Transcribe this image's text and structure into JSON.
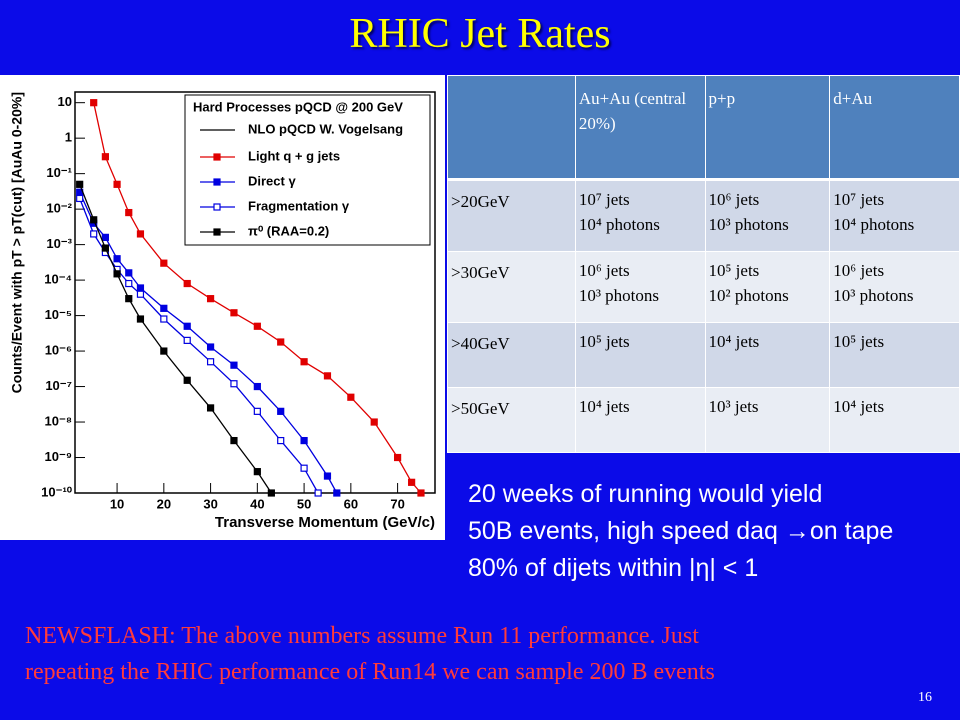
{
  "title": "RHIC Jet Rates",
  "plot": {
    "type": "line",
    "log_y": true,
    "xlabel": "Transverse Momentum (GeV/c)",
    "ylabel": "Counts/Event with pT > pT(cut) [AuAu 0-20%]",
    "legend_title": "Hard Processes pQCD @ 200 GeV",
    "legend_subtitle": "NLO pQCD W. Vogelsang",
    "xlim": [
      1,
      78
    ],
    "ylim": [
      1e-10,
      20
    ],
    "xticks": [
      10,
      20,
      30,
      40,
      50,
      60,
      70
    ],
    "yticks": [
      {
        "value": 10,
        "label": "10"
      },
      {
        "value": 1,
        "label": "1"
      },
      {
        "value": 0.1,
        "label": "10⁻¹"
      },
      {
        "value": 0.01,
        "label": "10⁻²"
      },
      {
        "value": 0.001,
        "label": "10⁻³"
      },
      {
        "value": 0.0001,
        "label": "10⁻⁴"
      },
      {
        "value": 1e-05,
        "label": "10⁻⁵"
      },
      {
        "value": 1e-06,
        "label": "10⁻⁶"
      },
      {
        "value": 1e-07,
        "label": "10⁻⁷"
      },
      {
        "value": 1e-08,
        "label": "10⁻⁸"
      },
      {
        "value": 1e-09,
        "label": "10⁻⁹"
      },
      {
        "value": 1e-10,
        "label": "10⁻¹⁰"
      }
    ],
    "series": [
      {
        "name": "Light q + g jets",
        "color": "#e00000",
        "marker": "square",
        "x": [
          5,
          7.5,
          10,
          12.5,
          15,
          20,
          25,
          30,
          35,
          40,
          45,
          50,
          55,
          60,
          65,
          70,
          73,
          75
        ],
        "values": [
          10,
          0.3,
          0.05,
          0.008,
          0.002,
          0.0003,
          8e-05,
          3e-05,
          1.2e-05,
          5e-06,
          1.8e-06,
          5e-07,
          2e-07,
          5e-08,
          1e-08,
          1e-09,
          2e-10,
          1e-10
        ]
      },
      {
        "name": "Direct γ",
        "color": "#0000e0",
        "marker": "square",
        "x": [
          2,
          5,
          7.5,
          10,
          12.5,
          15,
          20,
          25,
          30,
          35,
          40,
          45,
          50,
          55,
          57
        ],
        "values": [
          0.03,
          0.004,
          0.0016,
          0.0004,
          0.00016,
          6e-05,
          1.6e-05,
          5e-06,
          1.3e-06,
          4e-07,
          1e-07,
          2e-08,
          3e-09,
          3e-10,
          1e-10
        ]
      },
      {
        "name": "Fragmentation γ",
        "color": "#0000e0",
        "marker": "open-square",
        "x": [
          2,
          5,
          7.5,
          10,
          12.5,
          15,
          20,
          25,
          30,
          35,
          40,
          45,
          50,
          53
        ],
        "values": [
          0.02,
          0.002,
          0.0006,
          0.0002,
          8e-05,
          4e-05,
          8e-06,
          2e-06,
          5e-07,
          1.2e-07,
          2e-08,
          3e-09,
          5e-10,
          1e-10
        ]
      },
      {
        "name": "π⁰ (RAA=0.2)",
        "color": "#000000",
        "marker": "square",
        "x": [
          2,
          5,
          7.5,
          10,
          12.5,
          15,
          20,
          25,
          30,
          35,
          40,
          43
        ],
        "values": [
          0.05,
          0.005,
          0.0008,
          0.00015,
          3e-05,
          8e-06,
          1e-06,
          1.5e-07,
          2.5e-08,
          3e-09,
          4e-10,
          1e-10
        ]
      }
    ]
  },
  "table": {
    "header": [
      "",
      "Au+Au (central 20%)",
      "p+p",
      "d+Au"
    ],
    "rows": [
      [
        [
          ">20GeV"
        ],
        [
          "10⁷  jets",
          "10⁴ photons"
        ],
        [
          "10⁶ jets",
          "10³ photons"
        ],
        [
          "10⁷ jets",
          "10⁴ photons"
        ]
      ],
      [
        [
          ">30GeV"
        ],
        [
          "10⁶ jets",
          "10³ photons"
        ],
        [
          "10⁵ jets",
          "10² photons"
        ],
        [
          "10⁶ jets",
          "10³ photons"
        ]
      ],
      [
        [
          ">40GeV"
        ],
        [
          "10⁵ jets"
        ],
        [
          "10⁴ jets"
        ],
        [
          "10⁵ jets"
        ]
      ],
      [
        [
          ">50GeV"
        ],
        [
          "10⁴ jets"
        ],
        [
          "10³ jets"
        ],
        [
          "10⁴ jets"
        ]
      ]
    ]
  },
  "bullets": [
    "20 weeks of running would yield",
    "50B events, high speed daq →on tape",
    "80% of dijets within |η| < 1"
  ],
  "newsflash": [
    "NEWSFLASH: The above numbers assume Run 11 performance. Just",
    "repeating the RHIC performance of Run14  we  can sample 200 B events"
  ],
  "page_number": "16"
}
